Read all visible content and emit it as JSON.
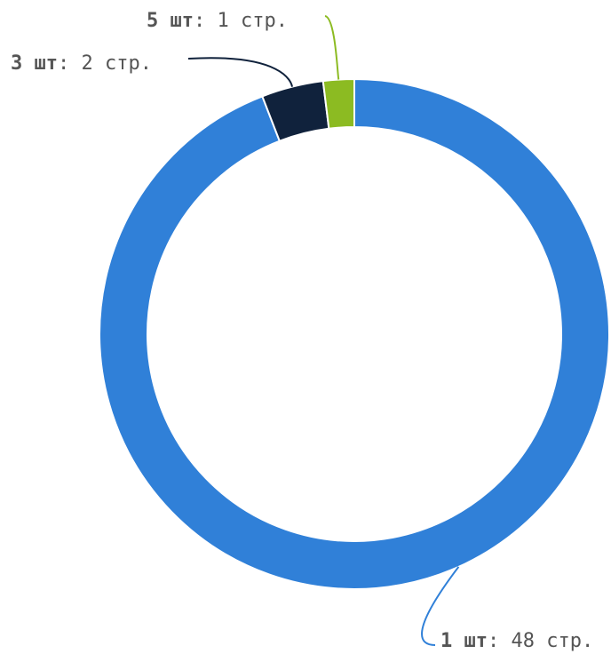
{
  "chart_data": {
    "type": "pie",
    "variant": "donut",
    "series": [
      {
        "category": "1 шт",
        "value": 48,
        "label_name": "1 шт",
        "label_value": ": 48 стр.",
        "color": "#3080d8"
      },
      {
        "category": "3 шт",
        "value": 2,
        "label_name": "3 шт",
        "label_value": ": 2 стр.",
        "color": "#10223c"
      },
      {
        "category": "5 шт",
        "value": 1,
        "label_name": "5 шт",
        "label_value": ": 1 стр.",
        "color": "#8cbb22"
      }
    ],
    "legend": "none",
    "label_color": "#555555",
    "background": "#ffffff"
  }
}
